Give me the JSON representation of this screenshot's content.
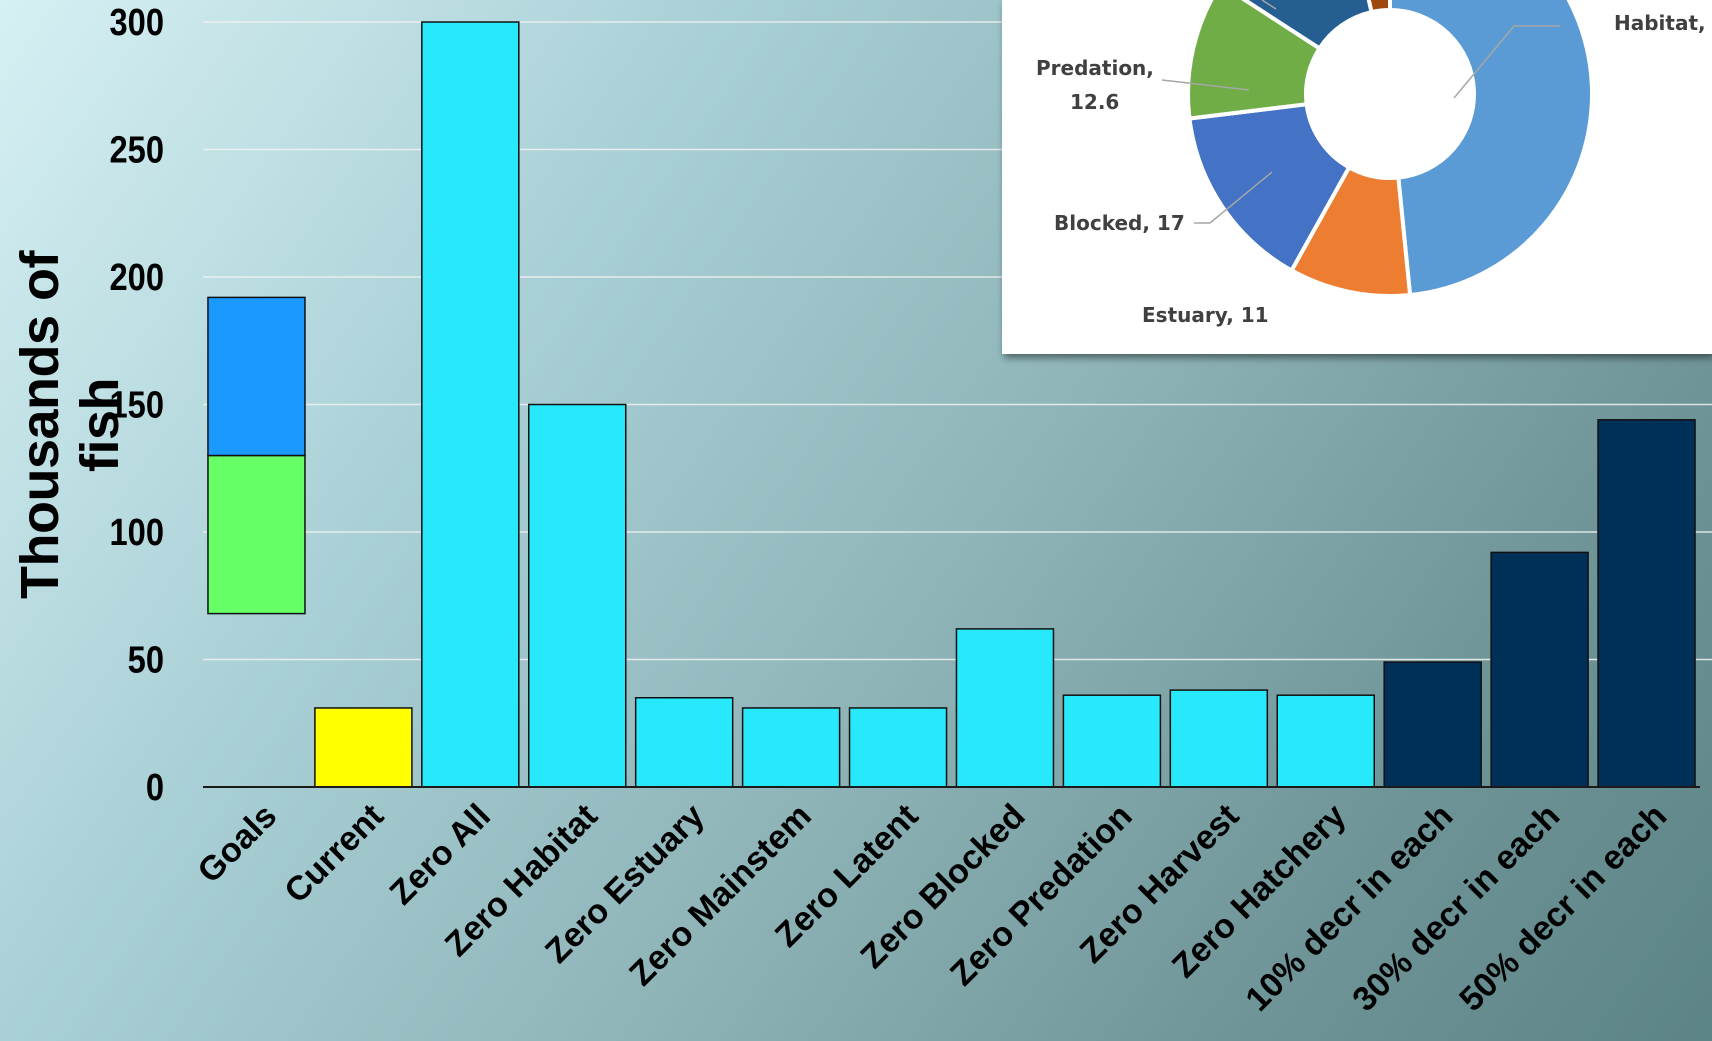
{
  "chart_data": [
    {
      "type": "bar",
      "stacked": true,
      "title": "",
      "xlabel": "",
      "ylabel": "Thousands of fish",
      "ylim": [
        0,
        300
      ],
      "yticks": [
        0,
        50,
        100,
        150,
        200,
        250,
        300
      ],
      "grid": true,
      "categories": [
        "Goals",
        "Current",
        "Zero All",
        "Zero Habitat",
        "Zero Estuary",
        "Zero Mainstem",
        "Zero Latent",
        "Zero Blocked",
        "Zero Predation",
        "Zero Harvest",
        "Zero Hatchery",
        "10% decr in each",
        "30% decr in each",
        "50% decr in each"
      ],
      "bars": [
        {
          "category": "Goals",
          "segments": [
            {
              "value": 68,
              "color": "transparent"
            },
            {
              "value": 62,
              "color": "#66ff66"
            },
            {
              "value": 62,
              "color": "#1a99ff"
            }
          ]
        },
        {
          "category": "Current",
          "segments": [
            {
              "value": 31,
              "color": "#ffff00"
            }
          ]
        },
        {
          "category": "Zero All",
          "segments": [
            {
              "value": 300,
              "color": "#28e9fb"
            }
          ]
        },
        {
          "category": "Zero Habitat",
          "segments": [
            {
              "value": 150,
              "color": "#28e9fb"
            }
          ]
        },
        {
          "category": "Zero Estuary",
          "segments": [
            {
              "value": 35,
              "color": "#28e9fb"
            }
          ]
        },
        {
          "category": "Zero Mainstem",
          "segments": [
            {
              "value": 31,
              "color": "#28e9fb"
            }
          ]
        },
        {
          "category": "Zero Latent",
          "segments": [
            {
              "value": 31,
              "color": "#28e9fb"
            }
          ]
        },
        {
          "category": "Zero Blocked",
          "segments": [
            {
              "value": 62,
              "color": "#28e9fb"
            }
          ]
        },
        {
          "category": "Zero Predation",
          "segments": [
            {
              "value": 36,
              "color": "#28e9fb"
            }
          ]
        },
        {
          "category": "Zero Harvest",
          "segments": [
            {
              "value": 38,
              "color": "#28e9fb"
            }
          ]
        },
        {
          "category": "Zero Hatchery",
          "segments": [
            {
              "value": 36,
              "color": "#28e9fb"
            }
          ]
        },
        {
          "category": "10% decr in each",
          "segments": [
            {
              "value": 49,
              "color": "#003057"
            }
          ]
        },
        {
          "category": "30% decr in each",
          "segments": [
            {
              "value": 92,
              "color": "#003057"
            }
          ]
        },
        {
          "category": "50% decr in each",
          "segments": [
            {
              "value": 144,
              "color": "#003057"
            }
          ]
        }
      ]
    },
    {
      "type": "pie",
      "donut": true,
      "title": "",
      "slices": [
        {
          "label": "Habitat,",
          "value": 55,
          "color": "#5b9bd5"
        },
        {
          "label": "Estuary, 11",
          "value": 11,
          "color": "#ed7d31"
        },
        {
          "label": "Blocked, 17",
          "value": 17,
          "color": "#4472c4"
        },
        {
          "label": "Predation,",
          "label2": "12.6",
          "value": 12.6,
          "color": "#70ad47"
        },
        {
          "label": "",
          "value": 14,
          "color": "#255e91"
        },
        {
          "label": "",
          "value": 4,
          "color": "#9e480e"
        }
      ]
    }
  ]
}
